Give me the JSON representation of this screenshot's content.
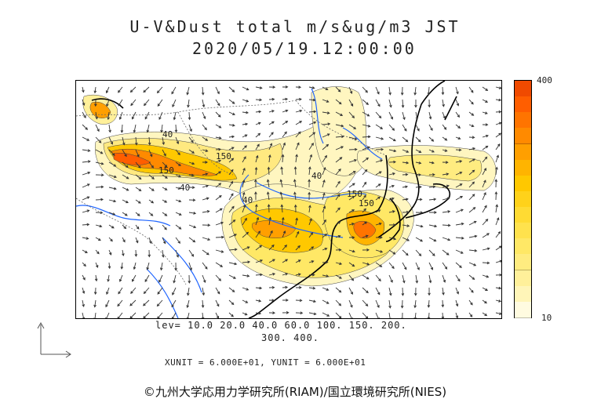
{
  "header": {
    "title": "U-V&Dust total m/s&ug/m3 JST",
    "timestamp": "2020/05/19.12:00:00"
  },
  "colorbar": {
    "max_label": "400",
    "min_label": "10",
    "colors": [
      "#fffbe0",
      "#fff5b8",
      "#fff09a",
      "#ffec80",
      "#ffe866",
      "#ffe24d",
      "#ffdb33",
      "#ffd21a",
      "#ffc800",
      "#ffb400",
      "#ff9f00",
      "#ff8a00",
      "#ff7400",
      "#ff5e00",
      "#f04a00"
    ]
  },
  "contour_levels": {
    "line1": "lev= 10.0 20.0 40.0 60.0 100. 150. 200.",
    "line2": "300. 400."
  },
  "contour_labels": [
    "40",
    "150",
    "150",
    "40",
    "40",
    "40",
    "150",
    "150"
  ],
  "vector_units": "XUNIT = 6.000E+01, YUNIT = 6.000E+01",
  "credit": "©九州大学応用力学研究所(RIAM)/国立環境研究所(NIES)",
  "colors": {
    "coast": "#000000",
    "rivers": "#1e64ff",
    "borders": "#666666",
    "arrows": "#333333"
  }
}
